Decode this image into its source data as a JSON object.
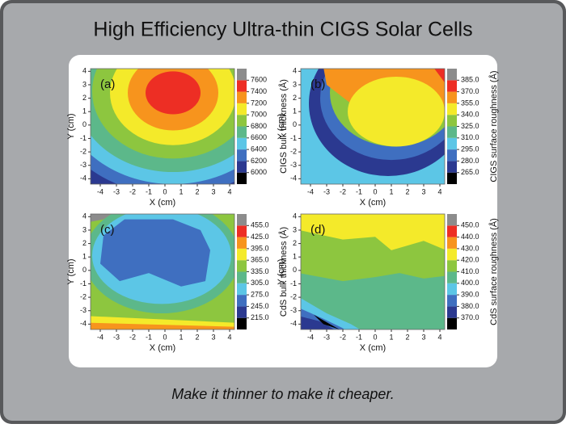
{
  "title": "High Efficiency Ultra-thin CIGS Solar Cells",
  "caption": "Make it thinner to make it cheaper.",
  "chart_data": [
    {
      "type": "contour",
      "panel_label": "(a)",
      "x_label": "X (cm)",
      "y_label": "Y (cm)",
      "colorbar_label": "CIGS bulk thickness (Å)",
      "xlim": [
        -4.6,
        4.3
      ],
      "ylim": [
        -4.4,
        4.2
      ],
      "xticks": [
        -4,
        -3,
        -2,
        -1,
        0,
        1,
        2,
        3,
        4
      ],
      "yticks": [
        -4,
        -3,
        -2,
        -1,
        0,
        1,
        2,
        3,
        4
      ],
      "levels": [
        6000,
        6200,
        6400,
        6600,
        6800,
        7000,
        7200,
        7400,
        7600
      ],
      "colors": [
        "#000000",
        "#2b3990",
        "#3f6fc0",
        "#5cc6e6",
        "#5cb88a",
        "#8dc63f",
        "#f4ea2a",
        "#f7941d",
        "#ed2e24",
        "#8c8c8c"
      ]
    },
    {
      "type": "contour",
      "panel_label": "(b)",
      "x_label": "X (cm)",
      "y_label": "Y (cm)",
      "colorbar_label": "CIGS surface roughness (Å)",
      "xlim": [
        -4.6,
        4.3
      ],
      "ylim": [
        -4.4,
        4.2
      ],
      "xticks": [
        -4,
        -3,
        -2,
        -1,
        0,
        1,
        2,
        3,
        4
      ],
      "yticks": [
        -4,
        -3,
        -2,
        -1,
        0,
        1,
        2,
        3,
        4
      ],
      "levels": [
        {
          "value": 265,
          "label": "265.0"
        },
        {
          "value": 280,
          "label": "280.0"
        },
        {
          "value": 295,
          "label": "295.0"
        },
        {
          "value": 310,
          "label": "310.0"
        },
        {
          "value": 325,
          "label": "325.0"
        },
        {
          "value": 340,
          "label": "340.0"
        },
        {
          "value": 355,
          "label": "355.0"
        },
        {
          "value": 370,
          "label": "370.0"
        },
        {
          "value": 385,
          "label": "385.0"
        }
      ],
      "colors": [
        "#000000",
        "#2b3990",
        "#3f6fc0",
        "#5cc6e6",
        "#5cb88a",
        "#8dc63f",
        "#f4ea2a",
        "#f7941d",
        "#ed2e24",
        "#8c8c8c"
      ]
    },
    {
      "type": "contour",
      "panel_label": "(c)",
      "x_label": "X (cm)",
      "y_label": "Y (cm)",
      "colorbar_label": "CdS bulk thickness (Å)",
      "xlim": [
        -4.6,
        4.3
      ],
      "ylim": [
        -4.4,
        4.2
      ],
      "xticks": [
        -4,
        -3,
        -2,
        -1,
        0,
        1,
        2,
        3,
        4
      ],
      "yticks": [
        -4,
        -3,
        -2,
        -1,
        0,
        1,
        2,
        3,
        4
      ],
      "levels": [
        {
          "value": 215,
          "label": "215.0"
        },
        {
          "value": 245,
          "label": "245.0"
        },
        {
          "value": 275,
          "label": "275.0"
        },
        {
          "value": 305,
          "label": "305.0"
        },
        {
          "value": 335,
          "label": "335.0"
        },
        {
          "value": 365,
          "label": "365.0"
        },
        {
          "value": 395,
          "label": "395.0"
        },
        {
          "value": 425,
          "label": "425.0"
        },
        {
          "value": 455,
          "label": "455.0"
        }
      ],
      "colors": [
        "#000000",
        "#2b3990",
        "#3f6fc0",
        "#5cc6e6",
        "#5cb88a",
        "#8dc63f",
        "#f4ea2a",
        "#f7941d",
        "#ed2e24",
        "#8c8c8c"
      ]
    },
    {
      "type": "contour",
      "panel_label": "(d)",
      "x_label": "X (cm)",
      "y_label": "Y (cm)",
      "colorbar_label": "CdS surface roughness (Å)",
      "xlim": [
        -4.6,
        4.3
      ],
      "ylim": [
        -4.4,
        4.2
      ],
      "xticks": [
        -4,
        -3,
        -2,
        -1,
        0,
        1,
        2,
        3,
        4
      ],
      "yticks": [
        -4,
        -3,
        -2,
        -1,
        0,
        1,
        2,
        3,
        4
      ],
      "levels": [
        {
          "value": 370,
          "label": "370.0"
        },
        {
          "value": 380,
          "label": "380.0"
        },
        {
          "value": 390,
          "label": "390.0"
        },
        {
          "value": 400,
          "label": "400.0"
        },
        {
          "value": 410,
          "label": "410.0"
        },
        {
          "value": 420,
          "label": "420.0"
        },
        {
          "value": 430,
          "label": "430.0"
        },
        {
          "value": 440,
          "label": "440.0"
        },
        {
          "value": 450,
          "label": "450.0"
        }
      ],
      "colors": [
        "#000000",
        "#2b3990",
        "#3f6fc0",
        "#5cc6e6",
        "#5cb88a",
        "#8dc63f",
        "#f4ea2a",
        "#f7941d",
        "#ed2e24",
        "#8c8c8c"
      ]
    }
  ]
}
